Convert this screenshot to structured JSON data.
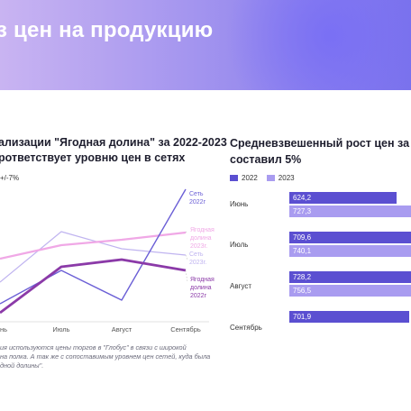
{
  "banner": {
    "title": "з цен на продукцию"
  },
  "left_chart": {
    "title_line1": "ализации \"Ягодная долина\" за 2022-2023",
    "title_line2": "рответствует уровню цен в сетях",
    "note": "+/-7%",
    "footnote": [
      "ия используются цены торгов в \"Глобус\" в связи с широкой",
      "на полка. А так же с сопоставимым уровнем цен сетей, куда была",
      "дной долины\"."
    ]
  },
  "right_chart": {
    "title_line1": "Средневзвешенный рост цен за 2",
    "title_line2": "составил 5%",
    "legend": [
      {
        "label": "2022",
        "color": "#5b4fd1"
      },
      {
        "label": "2023",
        "color": "#a99cf0"
      }
    ]
  },
  "chart_data": [
    {
      "type": "line",
      "categories": [
        "нь",
        "Июль",
        "Август",
        "Сентябрь"
      ],
      "series": [
        {
          "name": "Сеть 2022г",
          "color": "#6b5fd6",
          "label_lines": [
            "Сеть",
            "2022г"
          ]
        },
        {
          "name": "Ягодная долина 2023г.",
          "color": "#f0a8e6",
          "label_lines": [
            "Ягодная",
            "долина",
            "2023г."
          ]
        },
        {
          "name": "Сеть 2023г.",
          "color": "#c0b4f0",
          "label_lines": [
            "Сеть",
            "2023г."
          ]
        },
        {
          "name": "Ягодная долина 2022г",
          "color": "#8b3aa8",
          "label_lines": [
            "Ягодная",
            "долина",
            "2022г"
          ]
        }
      ]
    },
    {
      "type": "bar",
      "orientation": "horizontal",
      "categories": [
        "Июнь",
        "Июль",
        "Август",
        "Сентябрь"
      ],
      "series": [
        {
          "name": "2022",
          "color": "#5b4fd1",
          "values": [
            624.2,
            709.6,
            728.2,
            701.9
          ]
        },
        {
          "name": "2023",
          "color": "#a99cf0",
          "values": [
            727.3,
            740.1,
            756.5,
            null
          ]
        }
      ]
    }
  ]
}
